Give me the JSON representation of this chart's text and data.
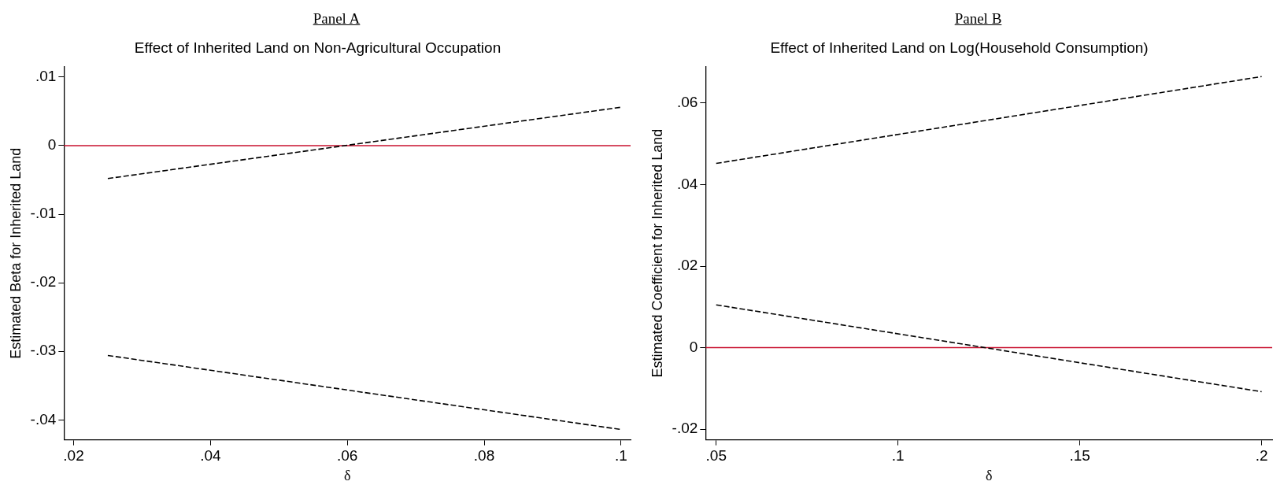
{
  "chart_data": [
    {
      "type": "line",
      "title": "Panel A",
      "subtitle": "Effect of Inherited Land on Non-Agricultural Occupation",
      "xlabel": "δ",
      "ylabel": "Estimated Beta for Inherited Land",
      "series": [
        {
          "color": "#000000",
          "x": [
            0.025,
            0.1
          ],
          "values": [
            -0.0048,
            0.0056
          ]
        },
        {
          "color": "#000000",
          "x": [
            0.025,
            0.1
          ],
          "values": [
            -0.0306,
            -0.0414
          ]
        }
      ],
      "line_style": "dashed",
      "marker": "none",
      "grid": false,
      "legend": false,
      "xlim": [
        0.0186,
        0.1014
      ],
      "xticks": [
        {
          "value": 0.02,
          "label": ".02"
        },
        {
          "value": 0.04,
          "label": ".04"
        },
        {
          "value": 0.06,
          "label": ".06"
        },
        {
          "value": 0.08,
          "label": ".08"
        },
        {
          "value": 0.1,
          "label": ".1"
        }
      ],
      "ylim": [
        -0.0429,
        0.0115
      ],
      "yticks": [
        {
          "value": -0.04,
          "label": "-.04"
        },
        {
          "value": -0.03,
          "label": "-.03"
        },
        {
          "value": -0.02,
          "label": "-.02"
        },
        {
          "value": -0.01,
          "label": "-.01"
        },
        0,
        {
          "value": 0.01,
          "label": ".01"
        }
      ],
      "ref_lines": [
        {
          "axis": "y",
          "value": 0,
          "color": "#c8102e"
        }
      ]
    },
    {
      "type": "line",
      "title": "Panel B",
      "subtitle": "Effect of Inherited Land on Log(Household Consumption)",
      "xlabel": "δ",
      "ylabel": "Estimated Coefficient for Inherited Land",
      "series": [
        {
          "color": "#000000",
          "x": [
            0.05,
            0.2
          ],
          "values": [
            0.0452,
            0.0665
          ]
        },
        {
          "color": "#000000",
          "x": [
            0.05,
            0.2
          ],
          "values": [
            0.0105,
            -0.0108
          ]
        }
      ],
      "line_style": "dashed",
      "marker": "none",
      "grid": false,
      "legend": false,
      "xlim": [
        0.0471,
        0.2029
      ],
      "xticks": [
        {
          "value": 0.05,
          "label": ".05"
        },
        {
          "value": 0.1,
          "label": ".1"
        },
        {
          "value": 0.15,
          "label": ".15"
        },
        {
          "value": 0.2,
          "label": ".2"
        }
      ],
      "ylim": [
        -0.0226,
        0.0689
      ],
      "yticks": [
        {
          "value": -0.02,
          "label": "-.02"
        },
        0,
        {
          "value": 0.02,
          "label": ".02"
        },
        {
          "value": 0.04,
          "label": ".04"
        },
        {
          "value": 0.06,
          "label": ".06"
        }
      ],
      "ref_lines": [
        {
          "axis": "y",
          "value": 0,
          "color": "#c8102e"
        }
      ]
    }
  ]
}
